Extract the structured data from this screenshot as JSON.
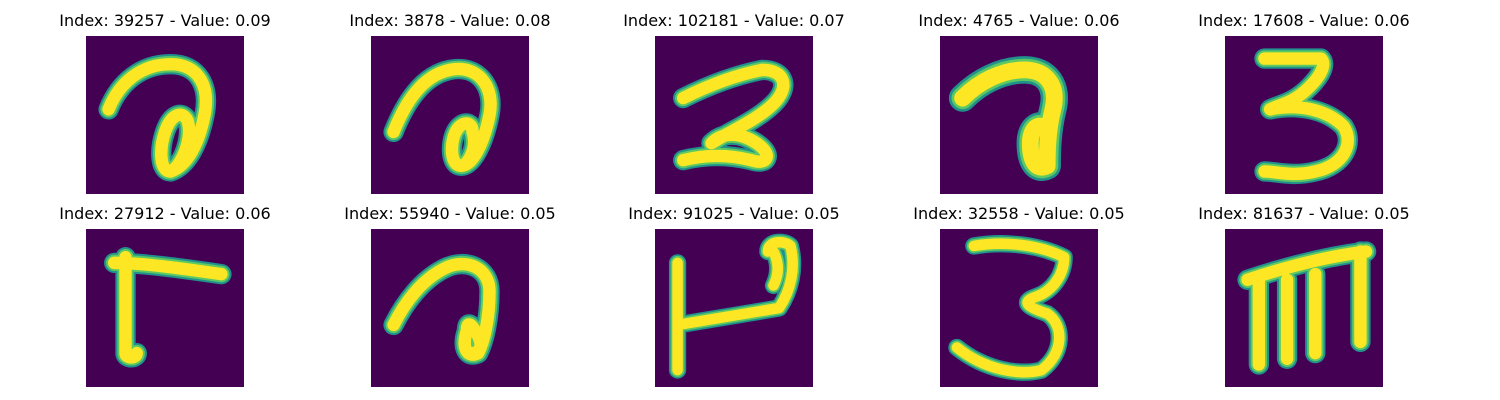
{
  "colors": {
    "background": "#440154",
    "stroke_outer": "#21918c",
    "stroke_mid": "#5ec962",
    "stroke_inner": "#fde725"
  },
  "panels": [
    {
      "title": "Index: 39257 - Value: 0.09",
      "glyph": "a-loop"
    },
    {
      "title": "Index: 3878 - Value: 0.08",
      "glyph": "a-loop"
    },
    {
      "title": "Index: 102181 - Value: 0.07",
      "glyph": "z-two"
    },
    {
      "title": "Index: 4765 - Value: 0.06",
      "glyph": "a-loop-fat"
    },
    {
      "title": "Index: 17608 - Value: 0.06",
      "glyph": "three-flat"
    },
    {
      "title": "Index: 27912 - Value: 0.06",
      "glyph": "l-shape"
    },
    {
      "title": "Index: 55940 - Value: 0.05",
      "glyph": "a-loop-small"
    },
    {
      "title": "Index: 91025 - Value: 0.05",
      "glyph": "l-hook"
    },
    {
      "title": "Index: 32558 - Value: 0.05",
      "glyph": "three"
    },
    {
      "title": "Index: 81637 - Value: 0.05",
      "glyph": "m-shape"
    }
  ]
}
